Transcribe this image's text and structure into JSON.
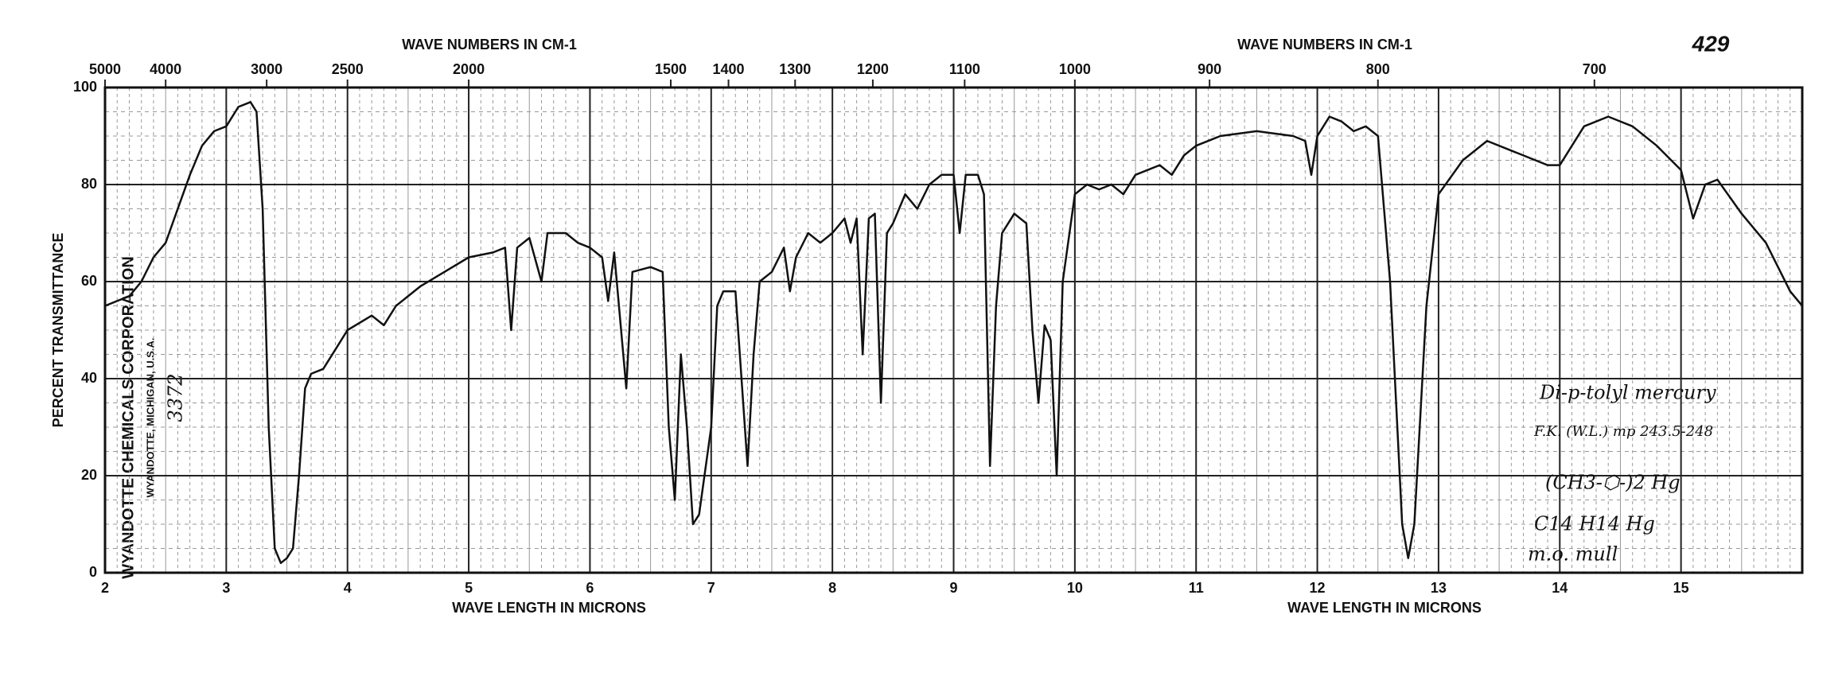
{
  "chart_data": {
    "type": "line",
    "top_axis_titles": [
      "WAVE NUMBERS IN CM-1",
      "WAVE NUMBERS IN CM-1"
    ],
    "bottom_axis_titles": [
      "WAVE LENGTH IN MICRONS",
      "WAVE LENGTH IN MICRONS"
    ],
    "ylabel": "PERCENT TRANSMITTANCE",
    "page_number": "429",
    "side_texts": [
      "WYANDOTTE CHEMICALS CORPORATION",
      "WYANDOTTE, MICHIGAN, U.S.A.",
      "3372"
    ],
    "annotations": [
      "Di-p-tolyl mercury",
      "F.K. (W.L.) mp 243.5-248",
      "(CH3-⬡-)2 Hg",
      "C14 H14 Hg",
      "m.o. mull"
    ],
    "color": "#111111",
    "grid": true,
    "xlim": [
      2,
      16
    ],
    "xticks": [
      2,
      3,
      4,
      5,
      6,
      7,
      8,
      9,
      10,
      11,
      12,
      13,
      14,
      15
    ],
    "ylim": [
      0,
      100
    ],
    "yticks": [
      0,
      20,
      40,
      60,
      80,
      100
    ],
    "x2lim": [
      5000,
      625
    ],
    "x2ticks": [
      5000,
      4000,
      3000,
      2500,
      2000,
      1500,
      1400,
      1300,
      1200,
      1100,
      1000,
      900,
      800,
      700
    ],
    "x": [
      2.0,
      2.1,
      2.2,
      2.3,
      2.4,
      2.5,
      2.6,
      2.7,
      2.8,
      2.9,
      3.0,
      3.1,
      3.2,
      3.25,
      3.3,
      3.35,
      3.4,
      3.45,
      3.5,
      3.55,
      3.6,
      3.65,
      3.7,
      3.8,
      3.9,
      4.0,
      4.2,
      4.3,
      4.4,
      4.6,
      4.8,
      5.0,
      5.2,
      5.3,
      5.35,
      5.4,
      5.5,
      5.6,
      5.65,
      5.8,
      5.9,
      6.0,
      6.1,
      6.15,
      6.2,
      6.3,
      6.35,
      6.5,
      6.6,
      6.65,
      6.7,
      6.75,
      6.8,
      6.85,
      6.9,
      7.0,
      7.05,
      7.1,
      7.2,
      7.25,
      7.3,
      7.35,
      7.4,
      7.5,
      7.6,
      7.65,
      7.7,
      7.8,
      7.9,
      8.0,
      8.1,
      8.15,
      8.2,
      8.25,
      8.3,
      8.35,
      8.4,
      8.45,
      8.5,
      8.6,
      8.7,
      8.8,
      8.9,
      9.0,
      9.05,
      9.1,
      9.2,
      9.25,
      9.3,
      9.35,
      9.4,
      9.5,
      9.6,
      9.65,
      9.7,
      9.75,
      9.8,
      9.85,
      9.9,
      10.0,
      10.1,
      10.2,
      10.3,
      10.4,
      10.5,
      10.7,
      10.8,
      10.9,
      11.0,
      11.2,
      11.5,
      11.8,
      11.9,
      11.95,
      12.0,
      12.1,
      12.2,
      12.3,
      12.4,
      12.5,
      12.6,
      12.7,
      12.75,
      12.8,
      12.9,
      13.0,
      13.2,
      13.4,
      13.6,
      13.8,
      13.9,
      14.0,
      14.2,
      14.4,
      14.6,
      14.8,
      15.0,
      15.1,
      15.2,
      15.3,
      15.5,
      15.7,
      15.9,
      16.0
    ],
    "values": [
      55,
      56,
      57,
      60,
      65,
      68,
      75,
      82,
      88,
      91,
      92,
      96,
      97,
      95,
      75,
      30,
      5,
      2,
      3,
      5,
      20,
      38,
      41,
      42,
      46,
      50,
      53,
      51,
      55,
      59,
      62,
      65,
      66,
      67,
      50,
      67,
      69,
      60,
      70,
      70,
      68,
      67,
      65,
      56,
      66,
      38,
      62,
      63,
      62,
      30,
      15,
      45,
      30,
      10,
      12,
      30,
      55,
      58,
      58,
      40,
      22,
      45,
      60,
      62,
      67,
      58,
      65,
      70,
      68,
      70,
      73,
      68,
      73,
      45,
      73,
      74,
      35,
      70,
      72,
      78,
      75,
      80,
      82,
      82,
      70,
      82,
      82,
      78,
      22,
      55,
      70,
      74,
      72,
      50,
      35,
      51,
      48,
      20,
      60,
      78,
      80,
      79,
      80,
      78,
      82,
      84,
      82,
      86,
      88,
      90,
      91,
      90,
      89,
      82,
      90,
      94,
      93,
      91,
      92,
      90,
      60,
      10,
      3,
      10,
      55,
      78,
      85,
      89,
      87,
      85,
      84,
      84,
      92,
      94,
      92,
      88,
      83,
      73,
      80,
      81,
      74,
      68,
      58,
      55
    ]
  }
}
